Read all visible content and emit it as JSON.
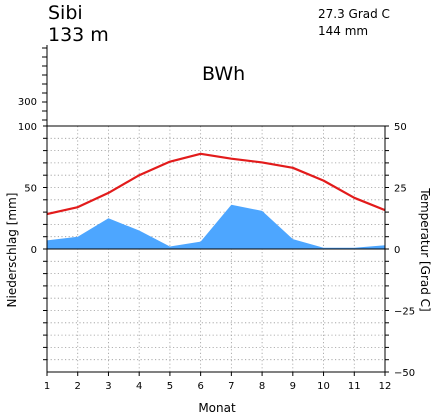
{
  "chart_data": {
    "type": "climate-diagram",
    "station": "Sibi",
    "elevation": "133 m",
    "mean_temperature": "27.3 Grad C",
    "annual_precipitation": "144 mm",
    "climate_class": "BWh",
    "xlabel": "Monat",
    "ylabel_left": "Niederschlag [mm]",
    "ylabel_right": "Temperatur [Grad C]",
    "categories": [
      "1",
      "2",
      "3",
      "4",
      "5",
      "6",
      "7",
      "8",
      "9",
      "10",
      "11",
      "12"
    ],
    "precip_ylim": [
      -100,
      100
    ],
    "precip_upper_ticks": [
      "300"
    ],
    "temp_ylim": [
      -50,
      50
    ],
    "left_ticks": [
      "100",
      "50",
      "0"
    ],
    "right_ticks": [
      "50",
      "25",
      "0",
      "−25",
      "−50"
    ],
    "grid": true,
    "series": [
      {
        "name": "Niederschlag",
        "kind": "area",
        "axis": "left",
        "values": [
          7,
          10,
          25,
          15,
          2,
          6,
          36,
          31,
          8,
          1,
          1,
          3
        ]
      },
      {
        "name": "Temperatur",
        "kind": "line",
        "axis": "right",
        "values": [
          14.2,
          17,
          22.8,
          30,
          35.5,
          38.7,
          36.7,
          35.2,
          33,
          27.8,
          20.8,
          15.8
        ]
      }
    ],
    "colors": {
      "precip_fill": "#4da6ff",
      "temp_line": "#e21b1b",
      "grid": "#9a9a9a"
    }
  }
}
